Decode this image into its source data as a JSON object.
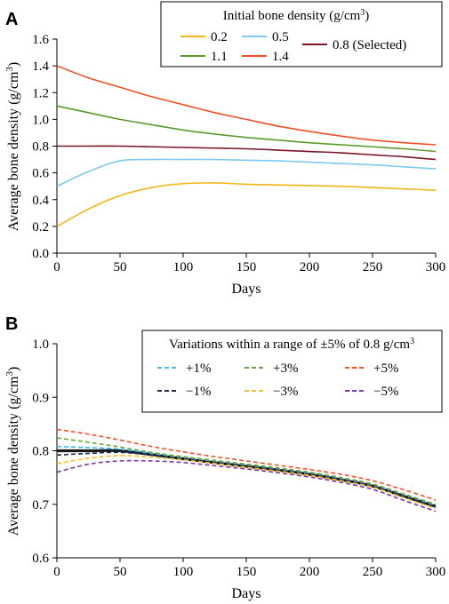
{
  "chart_data": [
    {
      "type": "line",
      "panel_label": "A",
      "xlabel": "Days",
      "ylabel": "Average bone density (g/cm",
      "ylabel_sup": "3",
      "ylabel_close": ")",
      "xlim": [
        0,
        300
      ],
      "ylim": [
        0,
        1.6
      ],
      "x_ticks": [
        0,
        50,
        100,
        150,
        200,
        250,
        300
      ],
      "y_ticks": [
        0,
        0.2,
        0.4,
        0.6,
        0.8,
        1.0,
        1.2,
        1.4,
        1.6
      ],
      "y_tick_labels": [
        "0.0",
        "0.2",
        "0.4",
        "0.6",
        "0.8",
        "1.0",
        "1.2",
        "1.4",
        "1.6"
      ],
      "grid": false,
      "legend": {
        "title": "Initial bone density (g/cm",
        "title_sup": "3",
        "title_close": ")",
        "placement": "top-right"
      },
      "x": [
        0,
        25,
        50,
        75,
        100,
        125,
        150,
        175,
        200,
        225,
        250,
        275,
        300
      ],
      "series": [
        {
          "name": "0.2",
          "color": "#f5b517",
          "dash": false,
          "values": [
            0.2,
            0.33,
            0.43,
            0.49,
            0.52,
            0.525,
            0.515,
            0.51,
            0.505,
            0.5,
            0.49,
            0.48,
            0.47
          ]
        },
        {
          "name": "0.5",
          "color": "#7cc8f0",
          "dash": false,
          "values": [
            0.5,
            0.61,
            0.69,
            0.7,
            0.7,
            0.7,
            0.695,
            0.69,
            0.68,
            0.67,
            0.66,
            0.645,
            0.63
          ]
        },
        {
          "name": "0.8 (Selected)",
          "color": "#7a1426",
          "dash": false,
          "values": [
            0.8,
            0.8,
            0.8,
            0.795,
            0.79,
            0.785,
            0.78,
            0.77,
            0.76,
            0.75,
            0.735,
            0.72,
            0.7
          ]
        },
        {
          "name": "1.1",
          "color": "#5a9a2a",
          "dash": false,
          "values": [
            1.1,
            1.05,
            1.0,
            0.96,
            0.92,
            0.89,
            0.865,
            0.845,
            0.825,
            0.81,
            0.795,
            0.78,
            0.76
          ]
        },
        {
          "name": "1.4",
          "color": "#f04e23",
          "dash": false,
          "values": [
            1.4,
            1.31,
            1.24,
            1.17,
            1.11,
            1.05,
            1.0,
            0.95,
            0.91,
            0.875,
            0.845,
            0.825,
            0.81
          ]
        }
      ]
    },
    {
      "type": "line",
      "panel_label": "B",
      "xlabel": "Days",
      "ylabel": "Average bone density (g/cm",
      "ylabel_sup": "3",
      "ylabel_close": ")",
      "xlim": [
        0,
        300
      ],
      "ylim": [
        0.6,
        1.0
      ],
      "x_ticks": [
        0,
        50,
        100,
        150,
        200,
        250,
        300
      ],
      "y_ticks": [
        0.6,
        0.7,
        0.8,
        0.9,
        1.0
      ],
      "y_tick_labels": [
        "0.6",
        "0.7",
        "0.8",
        "0.9",
        "1.0"
      ],
      "grid": false,
      "legend": {
        "title": "Variations within a range of ±5% of 0.8 g/cm",
        "title_sup": "3",
        "title_close": "",
        "placement": "top-right"
      },
      "x": [
        0,
        25,
        50,
        75,
        100,
        125,
        150,
        175,
        200,
        225,
        250,
        275,
        300
      ],
      "series": [
        {
          "name": "+1%",
          "color": "#3fb7e9",
          "dash": true,
          "values": [
            0.808,
            0.806,
            0.803,
            0.795,
            0.786,
            0.779,
            0.772,
            0.765,
            0.757,
            0.747,
            0.735,
            0.716,
            0.697
          ]
        },
        {
          "name": "+3%",
          "color": "#6aa53c",
          "dash": true,
          "values": [
            0.824,
            0.816,
            0.807,
            0.797,
            0.789,
            0.782,
            0.775,
            0.768,
            0.76,
            0.75,
            0.738,
            0.719,
            0.7
          ]
        },
        {
          "name": "+5%",
          "color": "#f0522a",
          "dash": true,
          "values": [
            0.84,
            0.831,
            0.82,
            0.808,
            0.798,
            0.789,
            0.781,
            0.773,
            0.765,
            0.756,
            0.744,
            0.727,
            0.708
          ]
        },
        {
          "name": "−1%",
          "color": "#1e2a4a",
          "dash": true,
          "values": [
            0.792,
            0.795,
            0.797,
            0.792,
            0.785,
            0.778,
            0.771,
            0.764,
            0.756,
            0.746,
            0.734,
            0.715,
            0.695
          ]
        },
        {
          "name": "−3%",
          "color": "#f5c020",
          "dash": true,
          "values": [
            0.776,
            0.786,
            0.791,
            0.788,
            0.783,
            0.776,
            0.769,
            0.762,
            0.754,
            0.744,
            0.732,
            0.712,
            0.692
          ]
        },
        {
          "name": "−5%",
          "color": "#7a3aa8",
          "dash": true,
          "values": [
            0.76,
            0.775,
            0.781,
            0.781,
            0.778,
            0.772,
            0.766,
            0.759,
            0.751,
            0.741,
            0.728,
            0.707,
            0.687
          ]
        }
      ],
      "highlight": {
        "name": "0.8",
        "color": "#1a1a1a",
        "values": [
          0.8,
          0.8,
          0.8,
          0.793,
          0.785,
          0.778,
          0.771,
          0.764,
          0.756,
          0.746,
          0.734,
          0.715,
          0.696
        ]
      }
    }
  ]
}
